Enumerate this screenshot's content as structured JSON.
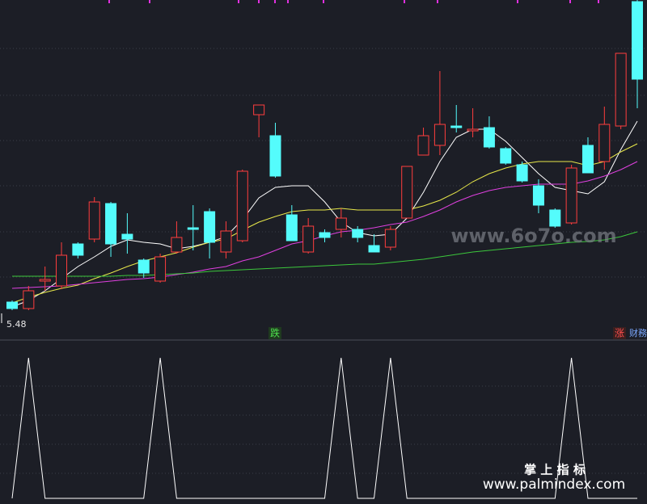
{
  "chart_data": [
    {
      "type": "candlestick",
      "categories": [
        null,
        null,
        null,
        null,
        null,
        null,
        null,
        null,
        null,
        null,
        null,
        null,
        null,
        null,
        null,
        null,
        null,
        null,
        null,
        null,
        null,
        null,
        null,
        null,
        null,
        null,
        null,
        null,
        null,
        null,
        null,
        null,
        null,
        null,
        null,
        null,
        null,
        null,
        null
      ],
      "open": [
        5.53,
        5.49,
        5.66,
        5.63,
        5.89,
        5.92,
        6.14,
        5.95,
        5.79,
        5.66,
        5.84,
        5.99,
        6.09,
        5.84,
        5.91,
        6.69,
        6.56,
        6.07,
        5.84,
        5.96,
        5.98,
        5.98,
        5.88,
        5.87,
        6.05,
        6.44,
        6.5,
        6.62,
        6.59,
        6.61,
        6.48,
        6.38,
        6.25,
        6.1,
        6.02,
        6.5,
        6.4,
        6.62,
        7.39
      ],
      "high": [
        5.54,
        5.63,
        5.75,
        5.9,
        5.9,
        6.18,
        6.15,
        6.08,
        5.8,
        5.83,
        6.03,
        6.13,
        6.11,
        6.03,
        6.35,
        6.75,
        6.64,
        6.13,
        6.05,
        5.98,
        6.11,
        6.0,
        5.95,
        6.0,
        6.37,
        6.61,
        6.96,
        6.75,
        6.73,
        6.68,
        6.49,
        6.4,
        6.29,
        6.11,
        6.38,
        6.55,
        6.74,
        7.07,
        7.4
      ],
      "low": [
        5.48,
        5.48,
        5.6,
        5.61,
        5.8,
        5.9,
        5.81,
        5.83,
        5.68,
        5.65,
        5.83,
        5.85,
        5.8,
        5.8,
        5.9,
        6.55,
        6.3,
        5.91,
        5.83,
        5.9,
        5.93,
        5.9,
        5.84,
        5.85,
        6.05,
        6.44,
        6.44,
        6.58,
        6.55,
        6.48,
        6.38,
        6.27,
        6.08,
        5.99,
        6.01,
        6.33,
        6.35,
        6.6,
        6.73
      ],
      "close": [
        5.49,
        5.6,
        5.67,
        5.82,
        5.82,
        6.15,
        5.89,
        5.92,
        5.71,
        5.81,
        5.93,
        5.98,
        5.9,
        5.97,
        6.34,
        6.75,
        6.31,
        5.91,
        6.0,
        5.93,
        6.05,
        5.93,
        5.84,
        5.98,
        6.37,
        6.56,
        6.63,
        6.61,
        6.6,
        6.49,
        6.39,
        6.28,
        6.13,
        6.0,
        6.36,
        6.33,
        6.63,
        7.07,
        6.91
      ],
      "up_color": "#ff3d3d",
      "down_color": "#54fcfc",
      "ylim": [
        5.4,
        7.4
      ],
      "series": [
        {
          "color": "#ffffff",
          "values": [
            5.5,
            5.54,
            5.6,
            5.675,
            5.75,
            5.81,
            5.875,
            5.915,
            5.9,
            5.89,
            5.86,
            5.875,
            5.9,
            5.935,
            6.04,
            6.175,
            6.24,
            6.25,
            6.25,
            6.15,
            6.025,
            5.96,
            5.94,
            5.95,
            6.05,
            6.21,
            6.4,
            6.55,
            6.6,
            6.6,
            6.525,
            6.425,
            6.325,
            6.24,
            6.22,
            6.2,
            6.275,
            6.475,
            6.65
          ]
        },
        {
          "color": "#e8e84a",
          "values": [
            5.525,
            5.56,
            5.59,
            5.615,
            5.635,
            5.675,
            5.71,
            5.75,
            5.785,
            5.81,
            5.835,
            5.87,
            5.9,
            5.92,
            5.975,
            6.025,
            6.06,
            6.09,
            6.1,
            6.1,
            6.11,
            6.1,
            6.1,
            6.1,
            6.1,
            6.125,
            6.16,
            6.21,
            6.275,
            6.325,
            6.36,
            6.385,
            6.4,
            6.4,
            6.4,
            6.375,
            6.4,
            6.46,
            6.51
          ]
        },
        {
          "color": "#e040e0",
          "values": [
            5.615,
            5.62,
            5.625,
            5.63,
            5.64,
            5.65,
            5.66,
            5.67,
            5.675,
            5.685,
            5.7,
            5.715,
            5.735,
            5.75,
            5.785,
            5.81,
            5.85,
            5.89,
            5.91,
            5.94,
            5.965,
            5.975,
            5.99,
            6.01,
            6.025,
            6.06,
            6.1,
            6.15,
            6.19,
            6.22,
            6.24,
            6.25,
            6.26,
            6.26,
            6.26,
            6.28,
            6.31,
            6.35,
            6.4
          ]
        },
        {
          "color": "#3cc83c",
          "values": [
            5.69,
            5.69,
            5.69,
            5.69,
            5.69,
            5.69,
            5.69,
            5.695,
            5.695,
            5.7,
            5.705,
            5.71,
            5.72,
            5.725,
            5.73,
            5.735,
            5.74,
            5.745,
            5.75,
            5.755,
            5.76,
            5.765,
            5.765,
            5.775,
            5.785,
            5.795,
            5.81,
            5.825,
            5.84,
            5.85,
            5.86,
            5.87,
            5.88,
            5.89,
            5.9,
            5.905,
            5.915,
            5.935,
            5.965
          ]
        }
      ],
      "annotations": [
        "5.48",
        "跌",
        "涨",
        "财務"
      ]
    },
    {
      "type": "line",
      "categories": [
        null,
        null,
        null,
        null,
        null,
        null,
        null,
        null,
        null,
        null,
        null,
        null,
        null,
        null,
        null,
        null,
        null,
        null,
        null,
        null,
        null,
        null,
        null,
        null,
        null,
        null,
        null,
        null,
        null,
        null,
        null,
        null,
        null,
        null,
        null,
        null,
        null,
        null,
        null
      ],
      "ylim": [
        0,
        1
      ],
      "series": [
        {
          "color": "#ffffff",
          "values": [
            0,
            1,
            0,
            0,
            0,
            0,
            0,
            0,
            0,
            1,
            0,
            0,
            0,
            0,
            0,
            0,
            0,
            0,
            0,
            0,
            1,
            0,
            0,
            1,
            0,
            0,
            0,
            0,
            0,
            0,
            0,
            0,
            0,
            0,
            1,
            0,
            0,
            0,
            0
          ]
        }
      ]
    }
  ],
  "watermarks": [
    "www.6o7o.com",
    "掌 上 指 标",
    "www.palmindex.com"
  ]
}
